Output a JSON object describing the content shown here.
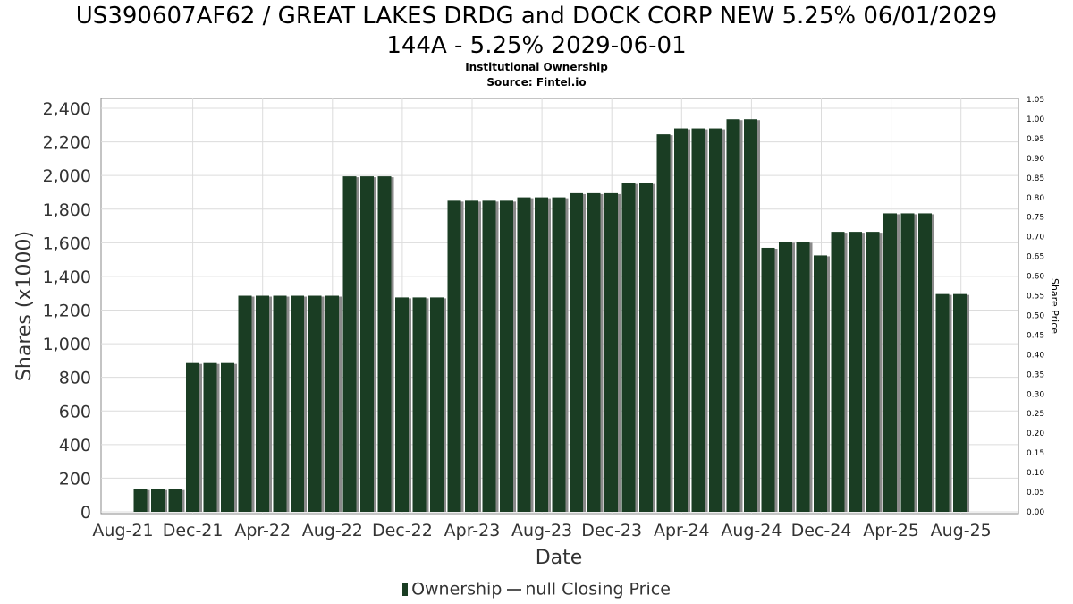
{
  "chart_data": {
    "type": "bar",
    "title_line1": "US390607AF62 / GREAT LAKES DRDG and DOCK CORP NEW 5.25% 06/01/2029",
    "title_line2": "144A - 5.25% 2029-06-01",
    "subtitle": "Institutional Ownership",
    "source": "Source: Fintel.io",
    "xlabel": "Date",
    "ylabel": "Shares (x1000)",
    "ylabel_right": "Share Price",
    "ylim": [
      0,
      2450
    ],
    "ylim_right": [
      0,
      1.05
    ],
    "y_ticks": [
      0,
      200,
      400,
      600,
      800,
      1000,
      1200,
      1400,
      1600,
      1800,
      2000,
      2200,
      2400
    ],
    "y_tick_labels": [
      "0",
      "200",
      "400",
      "600",
      "800",
      "1,000",
      "1,200",
      "1,400",
      "1,600",
      "1,800",
      "2,000",
      "2,200",
      "2,400"
    ],
    "y_right_ticks": [
      "0.00",
      "0.05",
      "0.10",
      "0.15",
      "0.20",
      "0.25",
      "0.30",
      "0.35",
      "0.40",
      "0.45",
      "0.50",
      "0.55",
      "0.60",
      "0.65",
      "0.70",
      "0.75",
      "0.80",
      "0.85",
      "0.90",
      "0.95",
      "1.00",
      "1.05"
    ],
    "x_tick_labels": [
      "Aug-21",
      "Dec-21",
      "Apr-22",
      "Aug-22",
      "Dec-22",
      "Apr-23",
      "Aug-23",
      "Dec-23",
      "Apr-24",
      "Aug-24",
      "Dec-24",
      "Apr-25",
      "Aug-25"
    ],
    "grid": true,
    "legend_position": "bottom",
    "series": [
      {
        "name": "Ownership",
        "color": "#1a3d23",
        "values": [
          0,
          135,
          135,
          135,
          885,
          885,
          885,
          1285,
          1285,
          1285,
          1285,
          1285,
          1285,
          1995,
          1995,
          1995,
          1275,
          1275,
          1275,
          1850,
          1850,
          1850,
          1850,
          1870,
          1870,
          1870,
          1895,
          1895,
          1895,
          1955,
          1955,
          2245,
          2280,
          2280,
          2280,
          2335,
          2335,
          1570,
          1605,
          1605,
          1525,
          1665,
          1665,
          1665,
          1775,
          1775,
          1775,
          1295,
          1295
        ]
      },
      {
        "name": "null Closing Price",
        "color": "#555555",
        "values": []
      }
    ]
  },
  "legend": {
    "ownership_label": "Ownership",
    "price_label": "null Closing Price"
  }
}
